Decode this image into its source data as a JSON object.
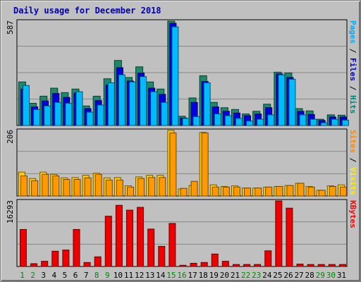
{
  "chart_data": {
    "type": "bar",
    "title": "Daily usage for December 2018",
    "categories": [
      "1",
      "2",
      "3",
      "4",
      "5",
      "6",
      "7",
      "8",
      "9",
      "10",
      "11",
      "12",
      "13",
      "14",
      "15",
      "16",
      "17",
      "18",
      "19",
      "20",
      "21",
      "22",
      "23",
      "24",
      "25",
      "26",
      "27",
      "28",
      "29",
      "30",
      "31"
    ],
    "weekend_days": [
      "1",
      "2",
      "8",
      "9",
      "15",
      "16",
      "22",
      "23",
      "29",
      "30"
    ],
    "panels": [
      {
        "name": "pages-files-hits",
        "max_label": "587",
        "ylim": [
          0,
          587
        ],
        "side_label": [
          {
            "text": "Pages",
            "color": "#00aaff"
          },
          {
            "text": " / ",
            "color": "#000000"
          },
          {
            "text": "Files",
            "color": "#0000cc"
          },
          {
            "text": " / ",
            "color": "#000000"
          },
          {
            "text": "Hits",
            "color": "#008080"
          }
        ],
        "series": [
          {
            "name": "Hits",
            "color": "#1a8a6a",
            "values": [
              245,
              125,
              165,
              210,
              185,
              205,
              110,
              165,
              263,
              366,
              270,
              330,
              245,
              205,
              587,
              52,
              155,
              280,
              130,
              100,
              90,
              65,
              80,
              120,
              300,
              295,
              95,
              82,
              35,
              60,
              58
            ]
          },
          {
            "name": "Files",
            "color": "#0000dd",
            "values": [
              205,
              105,
              138,
              180,
              158,
              182,
              95,
              140,
              228,
              325,
              250,
              295,
              210,
              175,
              575,
              42,
              130,
              248,
              105,
              80,
              70,
              55,
              65,
              100,
              290,
              270,
              80,
              62,
              28,
              48,
              48
            ]
          },
          {
            "name": "Pages",
            "color": "#00bbff",
            "values": [
              225,
              90,
              110,
              130,
              125,
              190,
              75,
              115,
              240,
              285,
              245,
              275,
              190,
              130,
              555,
              40,
              50,
              240,
              65,
              55,
              40,
              25,
              35,
              60,
              285,
              260,
              60,
              35,
              15,
              35,
              30
            ]
          }
        ]
      },
      {
        "name": "visits-sites",
        "max_label": "206",
        "ylim": [
          0,
          206
        ],
        "side_label": [
          {
            "text": "Sites",
            "color": "#ff8800"
          },
          {
            "text": " / ",
            "color": "#000000"
          },
          {
            "text": "Visits",
            "color": "#ffee00"
          }
        ],
        "series": [
          {
            "name": "Visits",
            "color": "#ffcc00",
            "values": [
              75,
              55,
              75,
              68,
              57,
              58,
              65,
              72,
              57,
              58,
              32,
              60,
              65,
              65,
              206,
              22,
              33,
              200,
              35,
              30,
              32,
              25,
              25,
              28,
              30,
              33,
              40,
              30,
              18,
              32,
              35
            ]
          },
          {
            "name": "Sites",
            "color": "#ff9900",
            "values": [
              63,
              48,
              68,
              63,
              52,
              52,
              57,
              68,
              50,
              50,
              28,
              55,
              58,
              58,
              198,
              24,
              46,
              198,
              28,
              28,
              28,
              25,
              25,
              28,
              30,
              33,
              40,
              28,
              18,
              30,
              28
            ]
          }
        ]
      },
      {
        "name": "kbytes",
        "max_label": "16293",
        "ylim": [
          0,
          16293
        ],
        "side_label": [
          {
            "text": "KBytes",
            "color": "#ff0000"
          }
        ],
        "series": [
          {
            "name": "KBytes",
            "color": "#ee0000",
            "values": [
              9200,
              700,
              1300,
              3800,
              4100,
              9200,
              1000,
              2400,
              12500,
              15200,
              14000,
              14700,
              9300,
              5000,
              10700,
              300,
              800,
              1000,
              3100,
              1300,
              500,
              500,
              500,
              3900,
              16293,
              14500,
              600,
              500,
              500,
              500,
              500
            ]
          }
        ]
      }
    ]
  }
}
